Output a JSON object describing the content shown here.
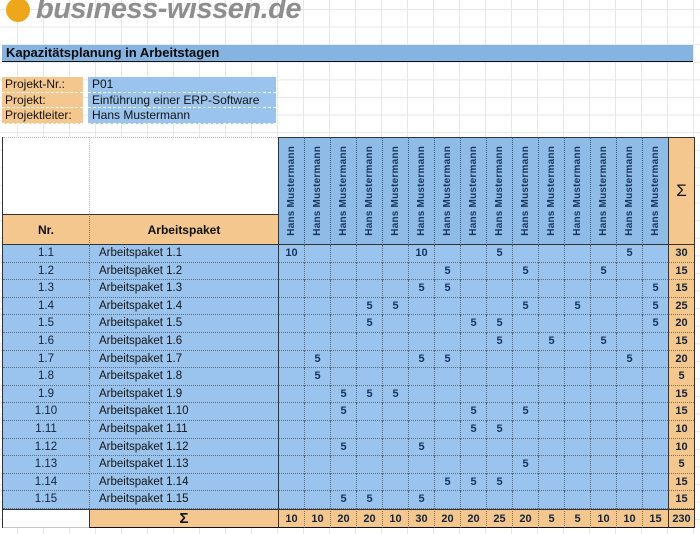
{
  "logo": {
    "text": "business-wissen.de"
  },
  "title": "Kapazitätsplanung in Arbeitstagen",
  "project_info": {
    "rows": [
      {
        "label": "Projekt-Nr.:",
        "value": "P01"
      },
      {
        "label": "Projekt:",
        "value": "Einführung einer ERP-Software"
      },
      {
        "label": "Projektleiter:",
        "value": "Hans Mustermann"
      }
    ]
  },
  "table": {
    "nr_header": "Nr.",
    "package_header": "Arbeitspaket",
    "sum_symbol": "Σ",
    "person_columns": [
      "Hans Mustermann",
      "Hans Mustermann",
      "Hans Mustermann",
      "Hans Mustermann",
      "Hans Mustermann",
      "Hans Mustermann",
      "Hans Mustermann",
      "Hans Mustermann",
      "Hans Mustermann",
      "Hans Mustermann",
      "Hans Mustermann",
      "Hans Mustermann",
      "Hans Mustermann",
      "Hans Mustermann",
      "Hans Mustermann"
    ],
    "rows": [
      {
        "nr": "1.1",
        "name": "Arbeitspaket 1.1",
        "values": [
          "10",
          "",
          "",
          "",
          "",
          "10",
          "",
          "",
          "5",
          "",
          "",
          "",
          "",
          "5",
          ""
        ],
        "sum": "30"
      },
      {
        "nr": "1.2",
        "name": "Arbeitspaket 1.2",
        "values": [
          "",
          "",
          "",
          "",
          "",
          "",
          "5",
          "",
          "",
          "5",
          "",
          "",
          "5",
          "",
          ""
        ],
        "sum": "15"
      },
      {
        "nr": "1.3",
        "name": "Arbeitspaket 1.3",
        "values": [
          "",
          "",
          "",
          "",
          "",
          "5",
          "5",
          "",
          "",
          "",
          "",
          "",
          "",
          "",
          "5"
        ],
        "sum": "15"
      },
      {
        "nr": "1.4",
        "name": "Arbeitspaket 1.4",
        "values": [
          "",
          "",
          "",
          "5",
          "5",
          "",
          "",
          "",
          "",
          "5",
          "",
          "5",
          "",
          "",
          "5"
        ],
        "sum": "25"
      },
      {
        "nr": "1.5",
        "name": "Arbeitspaket 1.5",
        "values": [
          "",
          "",
          "",
          "5",
          "",
          "",
          "",
          "5",
          "5",
          "",
          "",
          "",
          "",
          "",
          "5"
        ],
        "sum": "20"
      },
      {
        "nr": "1.6",
        "name": "Arbeitspaket 1.6",
        "values": [
          "",
          "",
          "",
          "",
          "",
          "",
          "",
          "",
          "5",
          "",
          "5",
          "",
          "5",
          "",
          ""
        ],
        "sum": "15"
      },
      {
        "nr": "1.7",
        "name": "Arbeitspaket 1.7",
        "values": [
          "",
          "5",
          "",
          "",
          "",
          "5",
          "5",
          "",
          "",
          "",
          "",
          "",
          "",
          "5",
          ""
        ],
        "sum": "20"
      },
      {
        "nr": "1.8",
        "name": "Arbeitspaket 1.8",
        "values": [
          "",
          "5",
          "",
          "",
          "",
          "",
          "",
          "",
          "",
          "",
          "",
          "",
          "",
          "",
          ""
        ],
        "sum": "5"
      },
      {
        "nr": "1.9",
        "name": "Arbeitspaket 1.9",
        "values": [
          "",
          "",
          "5",
          "5",
          "5",
          "",
          "",
          "",
          "",
          "",
          "",
          "",
          "",
          "",
          ""
        ],
        "sum": "15"
      },
      {
        "nr": "1.10",
        "name": "Arbeitspaket 1.10",
        "values": [
          "",
          "",
          "5",
          "",
          "",
          "",
          "",
          "5",
          "",
          "5",
          "",
          "",
          "",
          "",
          ""
        ],
        "sum": "15"
      },
      {
        "nr": "1.11",
        "name": "Arbeitspaket 1.11",
        "values": [
          "",
          "",
          "",
          "",
          "",
          "",
          "",
          "5",
          "5",
          "",
          "",
          "",
          "",
          "",
          ""
        ],
        "sum": "10"
      },
      {
        "nr": "1.12",
        "name": "Arbeitspaket 1.12",
        "values": [
          "",
          "",
          "5",
          "",
          "",
          "5",
          "",
          "",
          "",
          "",
          "",
          "",
          "",
          "",
          ""
        ],
        "sum": "10"
      },
      {
        "nr": "1.13",
        "name": "Arbeitspaket 1.13",
        "values": [
          "",
          "",
          "",
          "",
          "",
          "",
          "",
          "",
          "",
          "5",
          "",
          "",
          "",
          "",
          ""
        ],
        "sum": "5"
      },
      {
        "nr": "1.14",
        "name": "Arbeitspaket 1.14",
        "values": [
          "",
          "",
          "",
          "",
          "",
          "",
          "5",
          "5",
          "5",
          "",
          "",
          "",
          "",
          "",
          ""
        ],
        "sum": "15"
      },
      {
        "nr": "1.15",
        "name": "Arbeitspaket 1.15",
        "values": [
          "",
          "",
          "5",
          "5",
          "",
          "5",
          "",
          "",
          "",
          "",
          "",
          "",
          "",
          "",
          ""
        ],
        "sum": "15"
      }
    ],
    "footer": {
      "label": "Σ",
      "values": [
        "10",
        "10",
        "20",
        "20",
        "10",
        "30",
        "20",
        "20",
        "25",
        "20",
        "5",
        "5",
        "10",
        "10",
        "15"
      ],
      "total": "230"
    }
  },
  "colors": {
    "cell_blue": "#9AC4EE",
    "header_blue": "#8FBCE7",
    "title_blue": "#85B4E2",
    "cell_orange": "#F3C78E",
    "navy_text": "#17365D",
    "logo_orange": "#EDA718",
    "logo_gray": "#8E8E8E"
  }
}
